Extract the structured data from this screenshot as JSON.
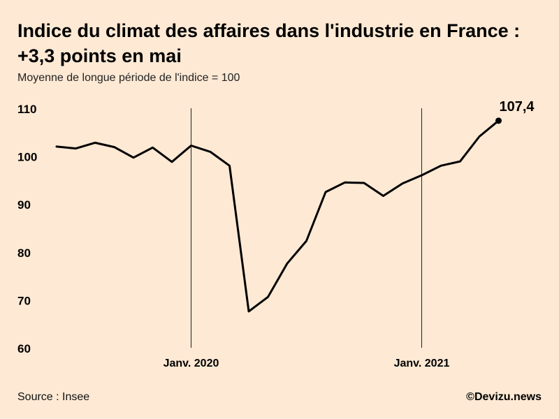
{
  "title": "Indice du climat des affaires dans l'industrie en France : +3,3 points en mai",
  "subtitle": "Moyenne de longue période de l'indice = 100",
  "source": "Source : Insee",
  "credit": "©Devizu.news",
  "colors": {
    "background": "#fde9d4",
    "line": "#000000",
    "marker_line": "#222222"
  },
  "chart_data": {
    "type": "line",
    "title": "Indice du climat des affaires dans l'industrie en France : +3,3 points en mai",
    "subtitle": "Moyenne de longue période de l'indice = 100",
    "xlabel": "",
    "ylabel": "",
    "ylim": [
      60,
      110
    ],
    "yticks": [
      110,
      100,
      90,
      80,
      70,
      60
    ],
    "grid": false,
    "x": [
      "2019-06",
      "2019-07",
      "2019-08",
      "2019-09",
      "2019-10",
      "2019-11",
      "2019-12",
      "2020-01",
      "2020-02",
      "2020-03",
      "2020-04",
      "2020-05",
      "2020-06",
      "2020-07",
      "2020-08",
      "2020-09",
      "2020-10",
      "2020-11",
      "2020-12",
      "2021-01",
      "2021-02",
      "2021-03",
      "2021-04",
      "2021-05"
    ],
    "series": [
      {
        "values": [
          102.0,
          101.6,
          102.8,
          101.9,
          99.7,
          101.8,
          98.8,
          102.2,
          100.9,
          98.0,
          67.6,
          70.6,
          77.6,
          82.3,
          92.5,
          94.5,
          94.4,
          91.7,
          94.3,
          96.0,
          98.0,
          98.9,
          104.1,
          107.4
        ]
      }
    ],
    "markers": [
      {
        "x": "2020-01",
        "label": "Janv. 2020"
      },
      {
        "x": "2021-01",
        "label": "Janv. 2021"
      }
    ],
    "annotation": {
      "x": "2021-05",
      "value_label": "107,4"
    }
  }
}
